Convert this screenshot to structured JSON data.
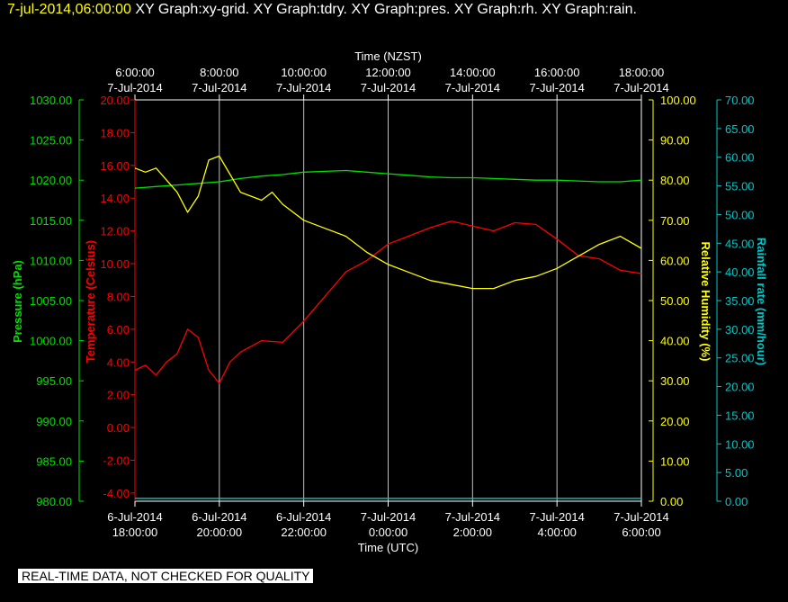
{
  "header": {
    "timestamp": "7-jul-2014,06:00:00",
    "graphs": "XY Graph:xy-grid.  XY Graph:tdry.  XY Graph:pres.  XY Graph:rh.  XY Graph:rain."
  },
  "notice": "REAL-TIME DATA, NOT CHECKED FOR QUALITY",
  "colors": {
    "pressure": "#00e000",
    "temperature": "#ff0000",
    "humidity": "#ffff00",
    "rain": "#00c8c8",
    "grid": "#c0c0c0",
    "frame": "#ffffff"
  },
  "chart_data": {
    "type": "line",
    "top_axis": {
      "title": "Time (NZST)",
      "ticks": [
        {
          "time": "6:00:00",
          "date": "7-Jul-2014"
        },
        {
          "time": "8:00:00",
          "date": "7-Jul-2014"
        },
        {
          "time": "10:00:00",
          "date": "7-Jul-2014"
        },
        {
          "time": "12:00:00",
          "date": "7-Jul-2014"
        },
        {
          "time": "14:00:00",
          "date": "7-Jul-2014"
        },
        {
          "time": "16:00:00",
          "date": "7-Jul-2014"
        },
        {
          "time": "18:00:00",
          "date": "7-Jul-2014"
        }
      ]
    },
    "bottom_axis": {
      "title": "Time (UTC)",
      "ticks": [
        {
          "date": "6-Jul-2014",
          "time": "18:00:00"
        },
        {
          "date": "6-Jul-2014",
          "time": "20:00:00"
        },
        {
          "date": "6-Jul-2014",
          "time": "22:00:00"
        },
        {
          "date": "7-Jul-2014",
          "time": "0:00:00"
        },
        {
          "date": "7-Jul-2014",
          "time": "2:00:00"
        },
        {
          "date": "7-Jul-2014",
          "time": "4:00:00"
        },
        {
          "date": "7-Jul-2014",
          "time": "6:00:00"
        }
      ]
    },
    "x_unit": "hours since 6-Jul-2014 18:00:00 UTC",
    "x_range": [
      0,
      12
    ],
    "axes": {
      "pressure": {
        "label": "Pressure (hPa)",
        "range": [
          980,
          1030
        ],
        "ticks": [
          "980.00",
          "985.00",
          "990.00",
          "995.00",
          "1000.00",
          "1005.00",
          "1010.00",
          "1015.00",
          "1020.00",
          "1025.00",
          "1030.00"
        ]
      },
      "temperature": {
        "label": "Temperature (Celsius)",
        "range": [
          -4.5,
          20
        ],
        "ticks": [
          "-4.00",
          "-2.00",
          "0.00",
          "2.00",
          "4.00",
          "6.00",
          "8.00",
          "10.00",
          "12.00",
          "14.00",
          "16.00",
          "18.00",
          "20.00"
        ]
      },
      "humidity": {
        "label": "Relative Humidity (%)",
        "range": [
          0,
          100
        ],
        "ticks": [
          "0.00",
          "10.00",
          "20.00",
          "30.00",
          "40.00",
          "50.00",
          "60.00",
          "70.00",
          "80.00",
          "90.00",
          "100.00"
        ]
      },
      "rain": {
        "label": "Rainfall rate (mm/hour)",
        "range": [
          0,
          70
        ],
        "ticks": [
          "0.00",
          "5.00",
          "10.00",
          "15.00",
          "20.00",
          "25.00",
          "30.00",
          "35.00",
          "40.00",
          "45.00",
          "50.00",
          "55.00",
          "60.00",
          "65.00",
          "70.00"
        ]
      }
    },
    "series": [
      {
        "name": "pres",
        "axis": "pressure",
        "x": [
          0,
          0.5,
          1,
          1.5,
          2,
          2.5,
          3,
          3.5,
          4,
          4.5,
          5,
          5.5,
          6,
          6.5,
          7,
          7.5,
          8,
          8.5,
          9,
          9.5,
          10,
          10.5,
          11,
          11.5,
          12
        ],
        "y": [
          1019.0,
          1019.2,
          1019.4,
          1019.6,
          1019.8,
          1020.2,
          1020.5,
          1020.7,
          1021.0,
          1021.1,
          1021.2,
          1021.0,
          1020.8,
          1020.6,
          1020.4,
          1020.3,
          1020.3,
          1020.2,
          1020.1,
          1020.0,
          1020.0,
          1019.9,
          1019.8,
          1019.8,
          1020.0
        ]
      },
      {
        "name": "tdry",
        "axis": "temperature",
        "x": [
          0,
          0.25,
          0.5,
          0.75,
          1,
          1.25,
          1.5,
          1.75,
          2,
          2.25,
          2.5,
          3,
          3.5,
          4,
          4.5,
          5,
          5.5,
          6,
          6.5,
          7,
          7.5,
          8,
          8.5,
          9,
          9.5,
          10,
          10.5,
          11,
          11.5,
          12
        ],
        "y": [
          3.5,
          3.8,
          3.2,
          4.0,
          4.5,
          6.0,
          5.5,
          3.5,
          2.7,
          4.0,
          4.6,
          5.3,
          5.2,
          6.5,
          8.0,
          9.5,
          10.2,
          11.2,
          11.7,
          12.2,
          12.6,
          12.3,
          12.0,
          12.5,
          12.4,
          11.5,
          10.5,
          10.3,
          9.6,
          9.4
        ]
      },
      {
        "name": "rh",
        "axis": "humidity",
        "x": [
          0,
          0.25,
          0.5,
          0.75,
          1,
          1.25,
          1.5,
          1.75,
          2,
          2.5,
          3,
          3.25,
          3.5,
          4,
          4.5,
          5,
          5.5,
          6,
          6.5,
          7,
          7.5,
          8,
          8.5,
          9,
          9.5,
          10,
          10.5,
          11,
          11.5,
          12
        ],
        "y": [
          83,
          82,
          83,
          80,
          77,
          72,
          76,
          85,
          86,
          77,
          75,
          77,
          74,
          70,
          68,
          66,
          62,
          59,
          57,
          55,
          54,
          53,
          53,
          55,
          56,
          58,
          61,
          64,
          66,
          63
        ]
      },
      {
        "name": "rain",
        "axis": "rain",
        "x": [
          0,
          12
        ],
        "y": [
          0.5,
          0.5
        ]
      }
    ]
  }
}
